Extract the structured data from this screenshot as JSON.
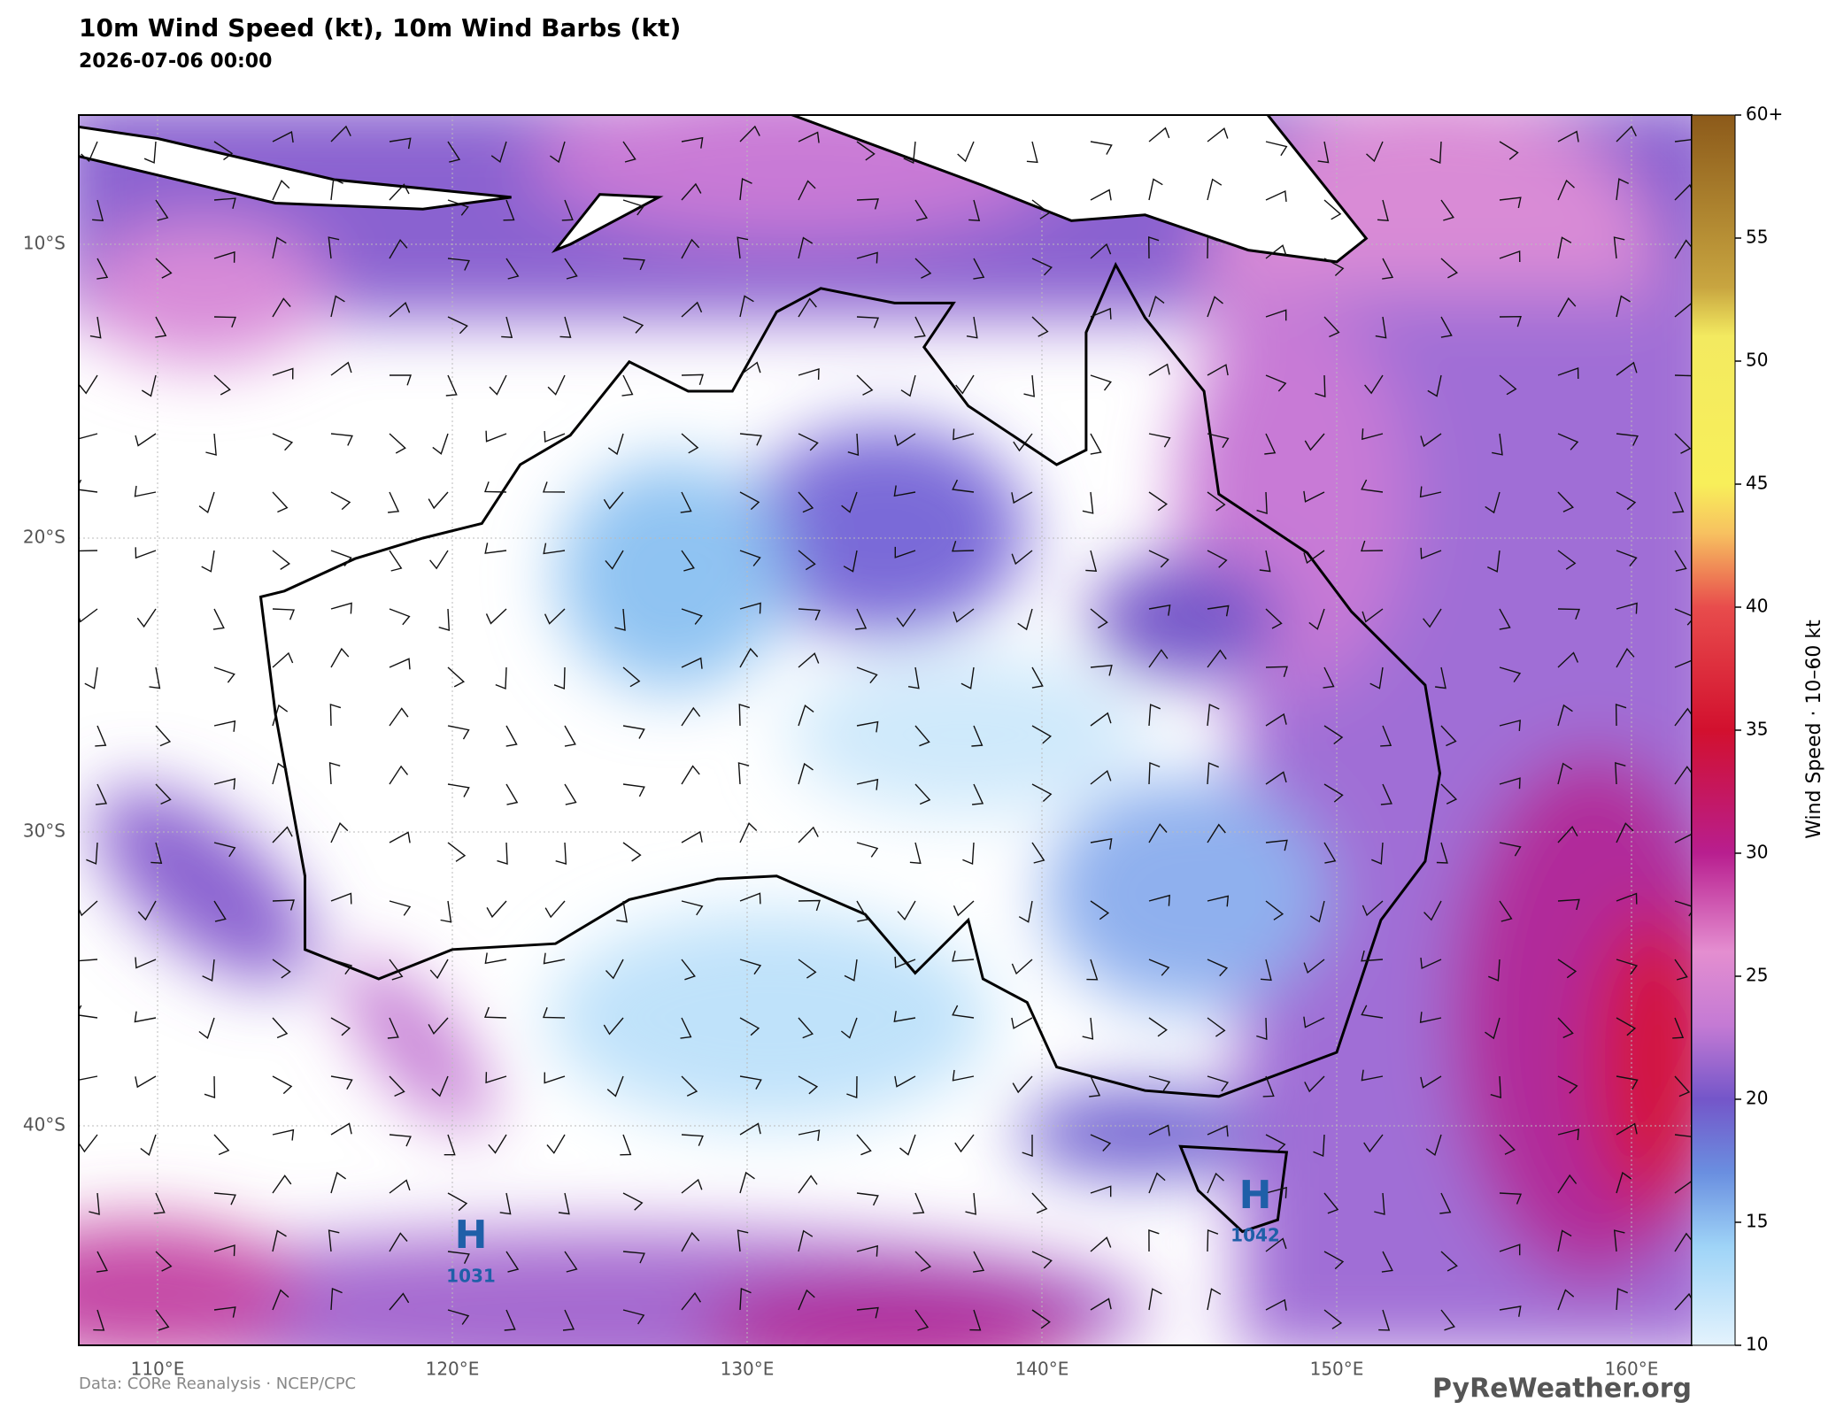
{
  "header": {
    "title": "10m Wind Speed (kt), 10m Wind Barbs (kt)",
    "subtitle": "2026-07-06 00:00"
  },
  "map": {
    "lon_labels": [
      "110°E",
      "120°E",
      "130°E",
      "140°E",
      "150°E",
      "160°E"
    ],
    "lat_labels": [
      "10°S",
      "20°S",
      "30°S",
      "40°S"
    ],
    "highs": [
      {
        "symbol": "H",
        "pressure": "1031"
      },
      {
        "symbol": "H",
        "pressure": "1042"
      }
    ]
  },
  "colorbar": {
    "ticks": [
      "10",
      "15",
      "20",
      "25",
      "30",
      "35",
      "40",
      "45",
      "50",
      "55",
      "60+"
    ],
    "label": "Wind Speed · 10–60 kt"
  },
  "footer": {
    "credit": "Data: CORe Reanalysis · NCEP/CPC",
    "watermark": "PyReWeather.org"
  }
}
